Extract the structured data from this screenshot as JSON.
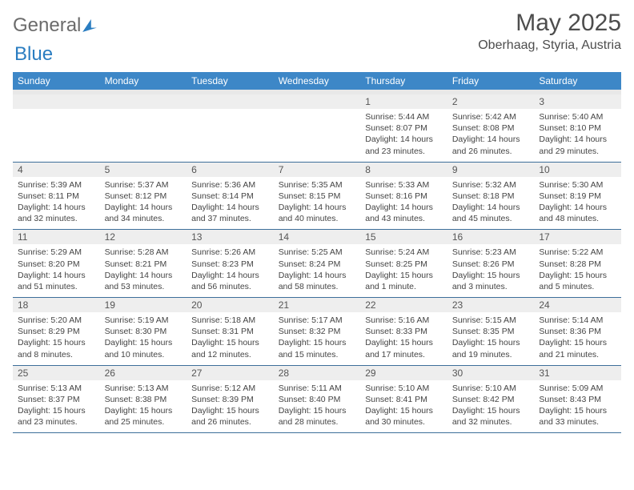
{
  "logo": {
    "text1": "General",
    "text2": "Blue"
  },
  "title": "May 2025",
  "location": "Oberhaag, Styria, Austria",
  "colors": {
    "header_bg": "#3d87c7",
    "header_text": "#ffffff",
    "band_bg": "#eeeeee",
    "border": "#3d6f9a",
    "body_bg": "#ffffff",
    "text": "#444444",
    "title_text": "#4d4d4d",
    "logo_gray": "#6b6b6b",
    "logo_blue": "#2a7dc1"
  },
  "day_headers": [
    "Sunday",
    "Monday",
    "Tuesday",
    "Wednesday",
    "Thursday",
    "Friday",
    "Saturday"
  ],
  "weeks": [
    [
      {
        "n": "",
        "lines": []
      },
      {
        "n": "",
        "lines": []
      },
      {
        "n": "",
        "lines": []
      },
      {
        "n": "",
        "lines": []
      },
      {
        "n": "1",
        "lines": [
          "Sunrise: 5:44 AM",
          "Sunset: 8:07 PM",
          "Daylight: 14 hours and 23 minutes."
        ]
      },
      {
        "n": "2",
        "lines": [
          "Sunrise: 5:42 AM",
          "Sunset: 8:08 PM",
          "Daylight: 14 hours and 26 minutes."
        ]
      },
      {
        "n": "3",
        "lines": [
          "Sunrise: 5:40 AM",
          "Sunset: 8:10 PM",
          "Daylight: 14 hours and 29 minutes."
        ]
      }
    ],
    [
      {
        "n": "4",
        "lines": [
          "Sunrise: 5:39 AM",
          "Sunset: 8:11 PM",
          "Daylight: 14 hours and 32 minutes."
        ]
      },
      {
        "n": "5",
        "lines": [
          "Sunrise: 5:37 AM",
          "Sunset: 8:12 PM",
          "Daylight: 14 hours and 34 minutes."
        ]
      },
      {
        "n": "6",
        "lines": [
          "Sunrise: 5:36 AM",
          "Sunset: 8:14 PM",
          "Daylight: 14 hours and 37 minutes."
        ]
      },
      {
        "n": "7",
        "lines": [
          "Sunrise: 5:35 AM",
          "Sunset: 8:15 PM",
          "Daylight: 14 hours and 40 minutes."
        ]
      },
      {
        "n": "8",
        "lines": [
          "Sunrise: 5:33 AM",
          "Sunset: 8:16 PM",
          "Daylight: 14 hours and 43 minutes."
        ]
      },
      {
        "n": "9",
        "lines": [
          "Sunrise: 5:32 AM",
          "Sunset: 8:18 PM",
          "Daylight: 14 hours and 45 minutes."
        ]
      },
      {
        "n": "10",
        "lines": [
          "Sunrise: 5:30 AM",
          "Sunset: 8:19 PM",
          "Daylight: 14 hours and 48 minutes."
        ]
      }
    ],
    [
      {
        "n": "11",
        "lines": [
          "Sunrise: 5:29 AM",
          "Sunset: 8:20 PM",
          "Daylight: 14 hours and 51 minutes."
        ]
      },
      {
        "n": "12",
        "lines": [
          "Sunrise: 5:28 AM",
          "Sunset: 8:21 PM",
          "Daylight: 14 hours and 53 minutes."
        ]
      },
      {
        "n": "13",
        "lines": [
          "Sunrise: 5:26 AM",
          "Sunset: 8:23 PM",
          "Daylight: 14 hours and 56 minutes."
        ]
      },
      {
        "n": "14",
        "lines": [
          "Sunrise: 5:25 AM",
          "Sunset: 8:24 PM",
          "Daylight: 14 hours and 58 minutes."
        ]
      },
      {
        "n": "15",
        "lines": [
          "Sunrise: 5:24 AM",
          "Sunset: 8:25 PM",
          "Daylight: 15 hours and 1 minute."
        ]
      },
      {
        "n": "16",
        "lines": [
          "Sunrise: 5:23 AM",
          "Sunset: 8:26 PM",
          "Daylight: 15 hours and 3 minutes."
        ]
      },
      {
        "n": "17",
        "lines": [
          "Sunrise: 5:22 AM",
          "Sunset: 8:28 PM",
          "Daylight: 15 hours and 5 minutes."
        ]
      }
    ],
    [
      {
        "n": "18",
        "lines": [
          "Sunrise: 5:20 AM",
          "Sunset: 8:29 PM",
          "Daylight: 15 hours and 8 minutes."
        ]
      },
      {
        "n": "19",
        "lines": [
          "Sunrise: 5:19 AM",
          "Sunset: 8:30 PM",
          "Daylight: 15 hours and 10 minutes."
        ]
      },
      {
        "n": "20",
        "lines": [
          "Sunrise: 5:18 AM",
          "Sunset: 8:31 PM",
          "Daylight: 15 hours and 12 minutes."
        ]
      },
      {
        "n": "21",
        "lines": [
          "Sunrise: 5:17 AM",
          "Sunset: 8:32 PM",
          "Daylight: 15 hours and 15 minutes."
        ]
      },
      {
        "n": "22",
        "lines": [
          "Sunrise: 5:16 AM",
          "Sunset: 8:33 PM",
          "Daylight: 15 hours and 17 minutes."
        ]
      },
      {
        "n": "23",
        "lines": [
          "Sunrise: 5:15 AM",
          "Sunset: 8:35 PM",
          "Daylight: 15 hours and 19 minutes."
        ]
      },
      {
        "n": "24",
        "lines": [
          "Sunrise: 5:14 AM",
          "Sunset: 8:36 PM",
          "Daylight: 15 hours and 21 minutes."
        ]
      }
    ],
    [
      {
        "n": "25",
        "lines": [
          "Sunrise: 5:13 AM",
          "Sunset: 8:37 PM",
          "Daylight: 15 hours and 23 minutes."
        ]
      },
      {
        "n": "26",
        "lines": [
          "Sunrise: 5:13 AM",
          "Sunset: 8:38 PM",
          "Daylight: 15 hours and 25 minutes."
        ]
      },
      {
        "n": "27",
        "lines": [
          "Sunrise: 5:12 AM",
          "Sunset: 8:39 PM",
          "Daylight: 15 hours and 26 minutes."
        ]
      },
      {
        "n": "28",
        "lines": [
          "Sunrise: 5:11 AM",
          "Sunset: 8:40 PM",
          "Daylight: 15 hours and 28 minutes."
        ]
      },
      {
        "n": "29",
        "lines": [
          "Sunrise: 5:10 AM",
          "Sunset: 8:41 PM",
          "Daylight: 15 hours and 30 minutes."
        ]
      },
      {
        "n": "30",
        "lines": [
          "Sunrise: 5:10 AM",
          "Sunset: 8:42 PM",
          "Daylight: 15 hours and 32 minutes."
        ]
      },
      {
        "n": "31",
        "lines": [
          "Sunrise: 5:09 AM",
          "Sunset: 8:43 PM",
          "Daylight: 15 hours and 33 minutes."
        ]
      }
    ]
  ]
}
